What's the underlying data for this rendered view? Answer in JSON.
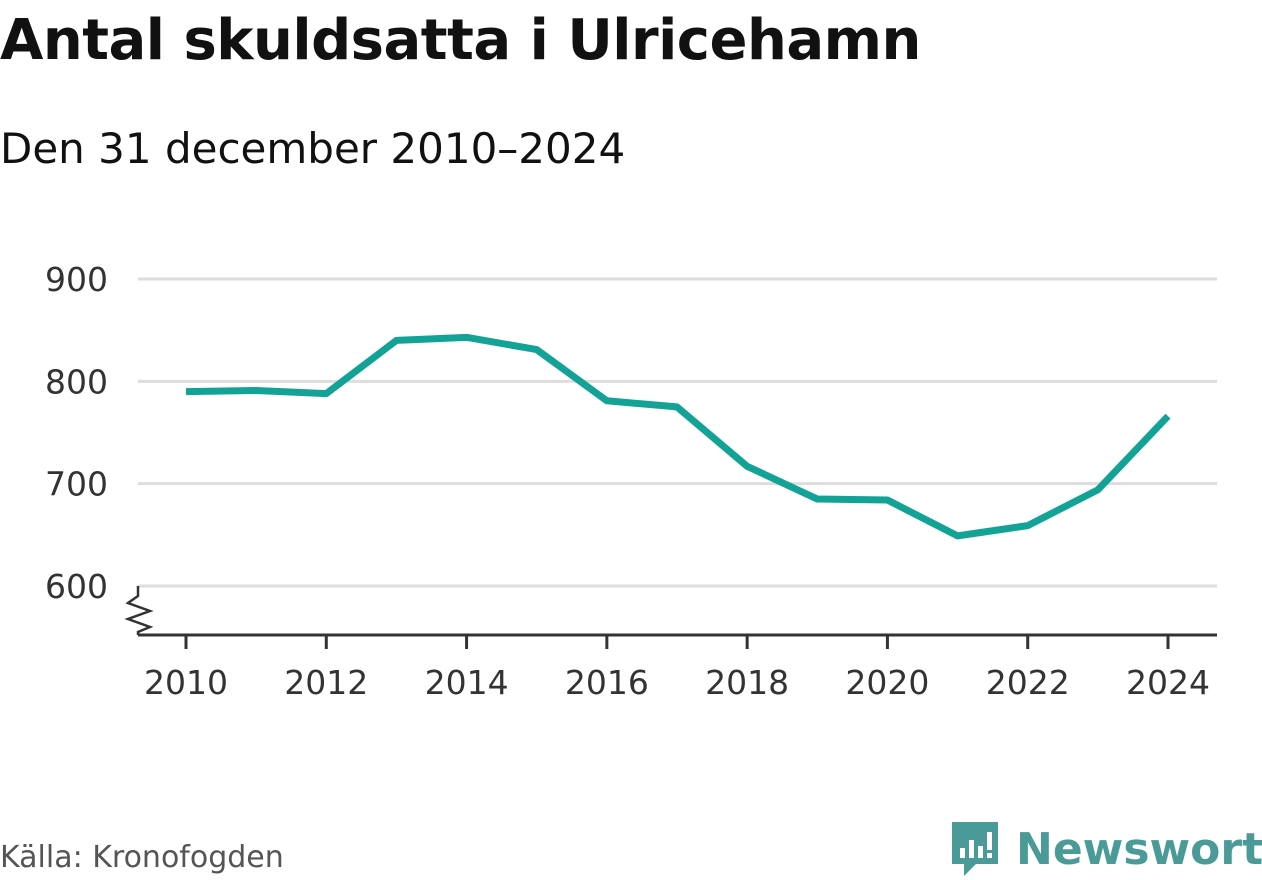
{
  "title": "Antal skuldsatta i Ulricehamn",
  "subtitle": "Den 31 december 2010–2024",
  "source": "Källa: Kronofogden",
  "brand": {
    "name": "Newsworthy",
    "icon": "newsworthy-logo-icon"
  },
  "colors": {
    "line": "#13a396",
    "grid": "#dddddd",
    "axis": "#333333",
    "brand": "#4a9b97"
  },
  "chart_data": {
    "type": "line",
    "title": "Antal skuldsatta i Ulricehamn",
    "subtitle": "Den 31 december 2010–2024",
    "xlabel": "",
    "ylabel": "",
    "x": [
      2010,
      2011,
      2012,
      2013,
      2014,
      2015,
      2016,
      2017,
      2018,
      2019,
      2020,
      2021,
      2022,
      2023,
      2024
    ],
    "series": [
      {
        "name": "Antal skuldsatta",
        "values": [
          790,
          791,
          788,
          840,
          843,
          831,
          781,
          775,
          717,
          685,
          684,
          649,
          659,
          694,
          766
        ]
      }
    ],
    "ylim": [
      600,
      900
    ],
    "yticks": [
      600,
      700,
      800,
      900
    ],
    "xticks": [
      2010,
      2012,
      2014,
      2016,
      2018,
      2020,
      2022,
      2024
    ],
    "axis_break": true,
    "grid": true,
    "legend": "none"
  }
}
